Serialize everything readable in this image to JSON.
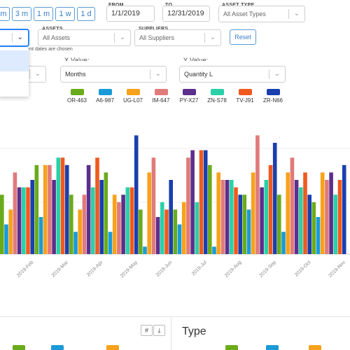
{
  "range_buttons": [
    "m",
    "3 m",
    "1 m",
    "1 w",
    "1 d"
  ],
  "filters": {
    "from_label": "FROM",
    "from_value": "1/1/2019",
    "to_label": "TO",
    "to_value": "12/31/2019",
    "asset_type_label": "ASSET TYPE",
    "asset_type_placeholder": "All Asset Types",
    "assets_label": "ASSETS",
    "assets_placeholder": "All Assets",
    "suppliers_label": "SUPPLIERS",
    "suppliers_placeholder": "All Suppliers",
    "reset_label": "Reset",
    "hint": "rent dates are chosen",
    "chevron_icon": "chevron-down-icon"
  },
  "axis_selects": {
    "x_label": "X Value:",
    "x_value": "Months",
    "y_label": "Y Value:",
    "y_value": "Quantity L"
  },
  "chart_data": {
    "type": "bar",
    "categories": [
      "2019-Feb",
      "2019-Mar",
      "2019-Apr",
      "2019-May",
      "2019-Jun",
      "2019-Jul",
      "2019-Aug",
      "2019-Sep",
      "2019-Oct",
      "2019-Nov"
    ],
    "series": [
      {
        "name": "OR-463",
        "color": "#6aab1c",
        "values": [
          8,
          12,
          8,
          11,
          6,
          6,
          12,
          8,
          8,
          7
        ]
      },
      {
        "name": "A6-987",
        "color": "#1a9bd7",
        "values": [
          4,
          5,
          3,
          3,
          1,
          4,
          1,
          6,
          3,
          5
        ]
      },
      {
        "name": "UG-L07",
        "color": "#f7a21a",
        "values": [
          6,
          12,
          6,
          8,
          11,
          7,
          11,
          11,
          11,
          11
        ]
      },
      {
        "name": "IM-647",
        "color": "#e07b7b",
        "values": [
          11,
          12,
          8,
          7,
          13,
          13,
          10,
          16,
          13,
          10
        ]
      },
      {
        "name": "PY-X27",
        "color": "#5c2f8c",
        "values": [
          9,
          10,
          12,
          8,
          5,
          14,
          10,
          9,
          10,
          11
        ]
      },
      {
        "name": "ZN-S78",
        "color": "#2ad0a8",
        "values": [
          9,
          13,
          9,
          9,
          7,
          7,
          10,
          10,
          9,
          8
        ]
      },
      {
        "name": "TV-J91",
        "color": "#f05a1e",
        "values": [
          9,
          13,
          13,
          9,
          6,
          14,
          9,
          12,
          11,
          10
        ]
      },
      {
        "name": "ZR-N66",
        "color": "#1a3fae",
        "values": [
          10,
          12,
          10,
          16,
          10,
          14,
          8,
          15,
          8,
          12
        ]
      }
    ]
  },
  "bottom": {
    "type_title": "Type",
    "tool_grid_icon": "#",
    "tool_download_icon": "⤓"
  }
}
